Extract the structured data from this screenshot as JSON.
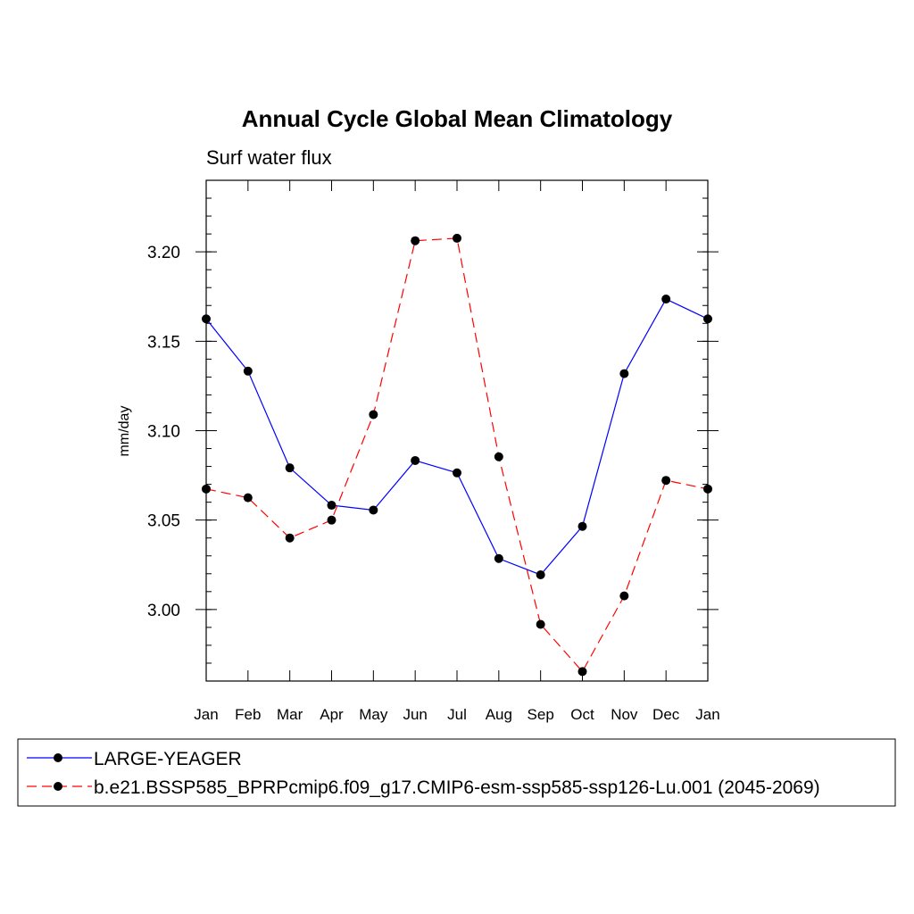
{
  "chart_data": {
    "type": "line",
    "title": "Annual Cycle Global Mean Climatology",
    "subtitle": "Surf water flux",
    "xlabel": "",
    "ylabel": "mm/day",
    "categories": [
      "Jan",
      "Feb",
      "Mar",
      "Apr",
      "May",
      "Jun",
      "Jul",
      "Aug",
      "Sep",
      "Oct",
      "Nov",
      "Dec",
      "Jan"
    ],
    "ylim": [
      2.96,
      3.24
    ],
    "yticks": [
      3.0,
      3.05,
      3.1,
      3.15,
      3.2
    ],
    "ytick_labels": [
      "3.00",
      "3.05",
      "3.10",
      "3.15",
      "3.20"
    ],
    "legend_position": "bottom",
    "series": [
      {
        "name": "LARGE-YEAGER",
        "color": "#0000ff",
        "dash": "solid",
        "marker": "circle",
        "values": [
          3.1625,
          3.1333,
          3.0792,
          3.0583,
          3.0556,
          3.0833,
          3.0764,
          3.0285,
          3.0194,
          3.0465,
          3.1319,
          3.1736,
          3.1625
        ]
      },
      {
        "name": "b.e21.BSSP585_BPRPcmip6.f09_g17.CMIP6-esm-ssp585-ssp126-Lu.001 (2045-2069)",
        "color": "#ff0000",
        "dash": "dashed",
        "marker": "circle",
        "values": [
          3.0674,
          3.0625,
          3.04,
          3.05,
          3.109,
          3.2062,
          3.2076,
          3.0854,
          2.9917,
          2.9653,
          3.0076,
          3.0722,
          3.0674
        ]
      }
    ]
  }
}
